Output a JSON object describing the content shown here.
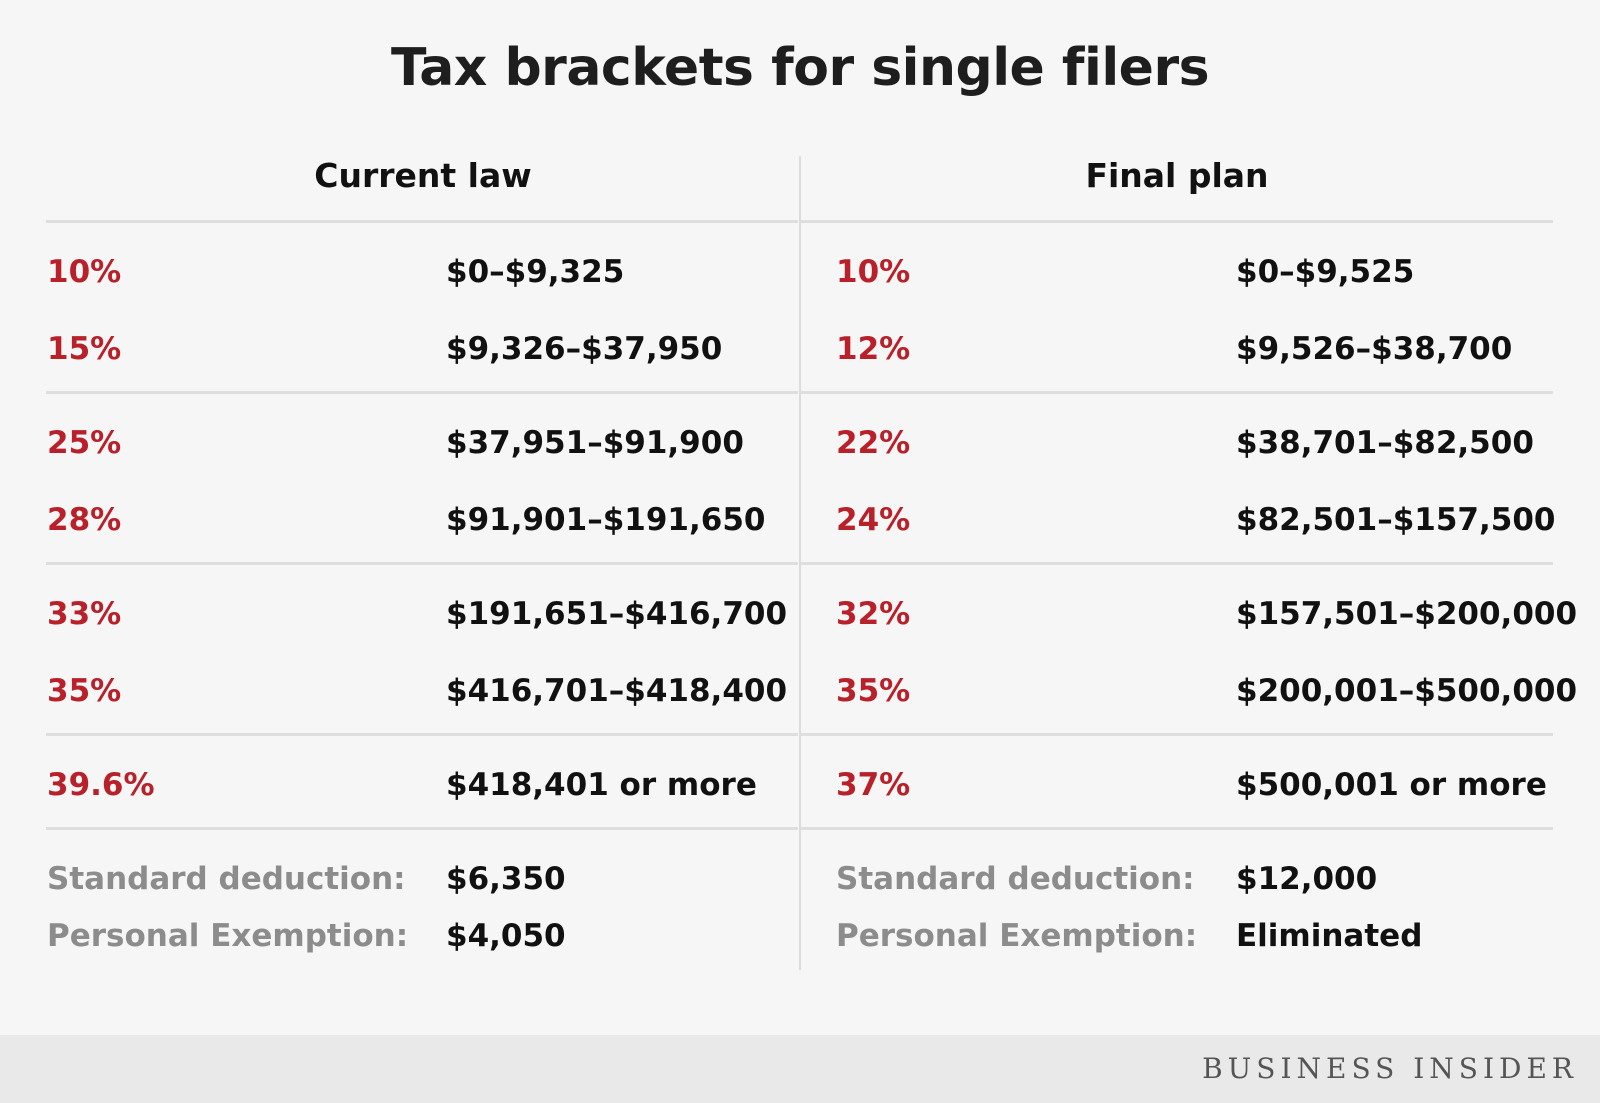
{
  "chart_data": {
    "type": "table",
    "title": "Tax brackets for single filers",
    "columns": [
      "Current law",
      "Final plan"
    ],
    "current_law": {
      "brackets": [
        {
          "rate": "10%",
          "range": "$0–$9,325"
        },
        {
          "rate": "15%",
          "range": "$9,326–$37,950"
        },
        {
          "rate": "25%",
          "range": "$37,951–$91,900"
        },
        {
          "rate": "28%",
          "range": "$91,901–$191,650"
        },
        {
          "rate": "33%",
          "range": "$191,651–$416,700"
        },
        {
          "rate": "35%",
          "range": "$416,701–$418,400"
        },
        {
          "rate": "39.6%",
          "range": "$418,401 or more"
        }
      ],
      "extras": [
        {
          "label": "Standard deduction:",
          "value": "$6,350"
        },
        {
          "label": "Personal Exemption:",
          "value": "$4,050"
        }
      ]
    },
    "final_plan": {
      "brackets": [
        {
          "rate": "10%",
          "range": "$0–$9,525"
        },
        {
          "rate": "12%",
          "range": "$9,526–$38,700"
        },
        {
          "rate": "22%",
          "range": "$38,701–$82,500"
        },
        {
          "rate": "24%",
          "range": "$82,501–$157,500"
        },
        {
          "rate": "32%",
          "range": "$157,501–$200,000"
        },
        {
          "rate": "35%",
          "range": "$200,001–$500,000"
        },
        {
          "rate": "37%",
          "range": "$500,001 or more"
        }
      ],
      "extras": [
        {
          "label": "Standard deduction:",
          "value": "$12,000"
        },
        {
          "label": "Personal Exemption:",
          "value": "Eliminated"
        }
      ]
    }
  },
  "brand": "BUSINESS INSIDER",
  "colors": {
    "rate": "#b8202a",
    "label": "#8c8c8c",
    "text": "#111111",
    "background": "#f6f6f6"
  }
}
